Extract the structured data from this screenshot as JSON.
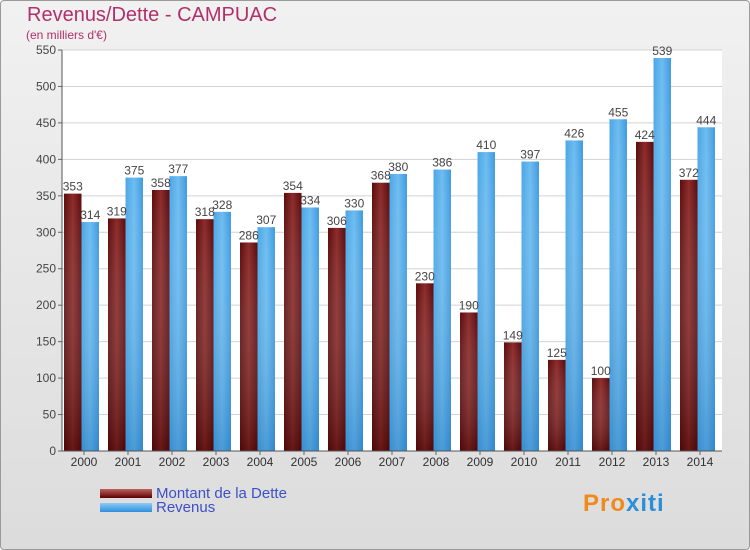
{
  "title": "Revenus/Dette - CAMPUAC",
  "subtitle": "(en milliers d'€)",
  "legend": [
    "Montant de la Dette",
    "Revenus"
  ],
  "logo": {
    "part1": "Pro",
    "part2": "xiti"
  },
  "colors": {
    "dette": "#7a1a1a",
    "revenus": "#3d9be0",
    "title": "#b0306a",
    "legend_text": "#3c50c8"
  },
  "chart_data": {
    "type": "bar",
    "categories": [
      "2000",
      "2001",
      "2002",
      "2003",
      "2004",
      "2005",
      "2006",
      "2007",
      "2008",
      "2009",
      "2010",
      "2011",
      "2012",
      "2013",
      "2014"
    ],
    "series": [
      {
        "name": "Montant de la Dette",
        "values": [
          353,
          319,
          358,
          318,
          286,
          354,
          306,
          368,
          230,
          190,
          149,
          125,
          100,
          424,
          372
        ]
      },
      {
        "name": "Revenus",
        "values": [
          314,
          375,
          377,
          328,
          307,
          334,
          330,
          380,
          386,
          410,
          397,
          426,
          455,
          539,
          444
        ]
      }
    ],
    "ylim": [
      0,
      550
    ],
    "yticks": [
      0,
      50,
      100,
      150,
      200,
      250,
      300,
      350,
      400,
      450,
      500,
      550
    ],
    "grid": true,
    "legend_position": "bottom-left"
  }
}
